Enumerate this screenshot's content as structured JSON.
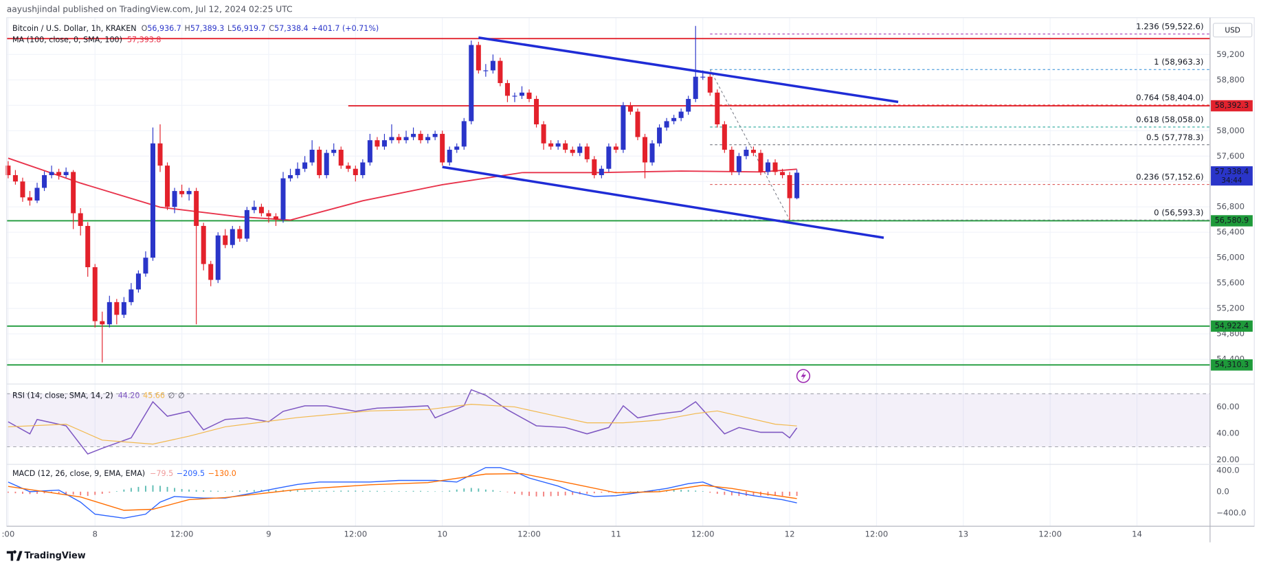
{
  "header": "aayushjindal published on TradingView.com, Jul 12, 2024 02:25 UTC",
  "footer": "TradingView",
  "chart_data": {
    "type": "candlestick",
    "title": "Bitcoin / U.S. Dollar, 1h, KRAKEN",
    "ohlc_labels": [
      "O",
      "H",
      "L",
      "C"
    ],
    "ohlc_values": [
      "56,936.7",
      "57,389.3",
      "56,919.7",
      "57,338.4"
    ],
    "change": "+401.7 (+0.71%)",
    "ma_title": "MA (100, close, 0, SMA, 100)",
    "ma_value": "57,393.8",
    "currency": "USD",
    "colors": {
      "up": "#2a35c9",
      "down": "#e3212b",
      "ma": "#e8334b",
      "trend": "#1f2cd6"
    },
    "xlim": [
      -0.2,
      166.1
    ],
    "xticks": [
      {
        "value": 0,
        "label": ":00"
      },
      {
        "value": 12,
        "label": "8"
      },
      {
        "value": 24,
        "label": "12:00"
      },
      {
        "value": 36,
        "label": "9"
      },
      {
        "value": 48,
        "label": "12:00"
      },
      {
        "value": 60,
        "label": "10"
      },
      {
        "value": 72,
        "label": "12:00"
      },
      {
        "value": 84,
        "label": "11"
      },
      {
        "value": 96,
        "label": "12:00"
      },
      {
        "value": 108,
        "label": "12"
      },
      {
        "value": 120,
        "label": "12:00"
      },
      {
        "value": 132,
        "label": "13"
      },
      {
        "value": 144,
        "label": "12:00"
      },
      {
        "value": 156,
        "label": "14"
      }
    ],
    "ylim": [
      54010,
      59780
    ],
    "yticks": [
      {
        "value": 54400,
        "label": "54,400"
      },
      {
        "value": 54800,
        "label": "54,800"
      },
      {
        "value": 55200,
        "label": "55,200"
      },
      {
        "value": 55600,
        "label": "55,600"
      },
      {
        "value": 56000,
        "label": "56,000"
      },
      {
        "value": 56400,
        "label": "56,400"
      },
      {
        "value": 56800,
        "label": "56,800"
      },
      {
        "value": 57200,
        "label": "57,200"
      },
      {
        "value": 57600,
        "label": "57,600"
      },
      {
        "value": 58000,
        "label": "58,000"
      },
      {
        "value": 58400,
        "label": "58,400"
      },
      {
        "value": 58800,
        "label": "58,800"
      },
      {
        "value": 59200,
        "label": "59,200"
      }
    ],
    "grid": true,
    "candles": [
      [
        57450,
        57520,
        57250,
        57300
      ],
      [
        57300,
        57380,
        57150,
        57200
      ],
      [
        57200,
        57260,
        56880,
        56950
      ],
      [
        56950,
        57050,
        56820,
        56900
      ],
      [
        56900,
        57180,
        56860,
        57100
      ],
      [
        57100,
        57360,
        57050,
        57300
      ],
      [
        57300,
        57450,
        57250,
        57350
      ],
      [
        57350,
        57400,
        57230,
        57300
      ],
      [
        57300,
        57420,
        57260,
        57350
      ],
      [
        57350,
        57380,
        56450,
        56700
      ],
      [
        56700,
        56780,
        56350,
        56500
      ],
      [
        56500,
        56560,
        55700,
        55850
      ],
      [
        55850,
        55900,
        54900,
        55000
      ],
      [
        55000,
        55150,
        54350,
        54950
      ],
      [
        54950,
        55400,
        54900,
        55300
      ],
      [
        55300,
        55350,
        54950,
        55100
      ],
      [
        55100,
        55380,
        55050,
        55300
      ],
      [
        55300,
        55600,
        55250,
        55500
      ],
      [
        55500,
        55800,
        55450,
        55750
      ],
      [
        55750,
        56100,
        55700,
        56000
      ],
      [
        56000,
        58050,
        55950,
        57800
      ],
      [
        57800,
        58100,
        57350,
        57450
      ],
      [
        57450,
        57500,
        56750,
        56800
      ],
      [
        56800,
        57100,
        56700,
        57050
      ],
      [
        57050,
        57150,
        56950,
        57000
      ],
      [
        57000,
        57100,
        56900,
        57050
      ],
      [
        57050,
        57100,
        54950,
        56500
      ],
      [
        56500,
        56550,
        55800,
        55900
      ],
      [
        55900,
        55950,
        55550,
        55650
      ],
      [
        55650,
        56400,
        55600,
        56350
      ],
      [
        56350,
        56450,
        56150,
        56200
      ],
      [
        56200,
        56500,
        56150,
        56450
      ],
      [
        56450,
        56500,
        56250,
        56300
      ],
      [
        56300,
        56800,
        56250,
        56750
      ],
      [
        56750,
        56900,
        56700,
        56800
      ],
      [
        56800,
        56850,
        56650,
        56700
      ],
      [
        56700,
        56750,
        56550,
        56650
      ],
      [
        56650,
        56700,
        56500,
        56600
      ],
      [
        56600,
        57350,
        56550,
        57250
      ],
      [
        57250,
        57400,
        57200,
        57300
      ],
      [
        57300,
        57500,
        57250,
        57400
      ],
      [
        57400,
        57600,
        57350,
        57500
      ],
      [
        57500,
        57850,
        57450,
        57700
      ],
      [
        57700,
        57750,
        57250,
        57300
      ],
      [
        57300,
        57700,
        57250,
        57650
      ],
      [
        57650,
        57800,
        57600,
        57700
      ],
      [
        57700,
        57750,
        57400,
        57450
      ],
      [
        57450,
        57500,
        57350,
        57400
      ],
      [
        57400,
        57450,
        57200,
        57300
      ],
      [
        57300,
        57550,
        57250,
        57500
      ],
      [
        57500,
        57950,
        57450,
        57850
      ],
      [
        57850,
        57900,
        57700,
        57750
      ],
      [
        57750,
        57950,
        57700,
        57850
      ],
      [
        57850,
        58100,
        57800,
        57900
      ],
      [
        57900,
        57950,
        57800,
        57850
      ],
      [
        57850,
        58000,
        57800,
        57900
      ],
      [
        57900,
        58050,
        57850,
        57950
      ],
      [
        57950,
        58000,
        57800,
        57850
      ],
      [
        57850,
        57950,
        57800,
        57900
      ],
      [
        57900,
        58000,
        57850,
        57950
      ],
      [
        57950,
        58000,
        57450,
        57500
      ],
      [
        57500,
        57750,
        57450,
        57700
      ],
      [
        57700,
        57800,
        57650,
        57750
      ],
      [
        57750,
        58200,
        57700,
        58150
      ],
      [
        58150,
        59420,
        58100,
        59350
      ],
      [
        59350,
        59400,
        58900,
        58950
      ],
      [
        58950,
        59050,
        58850,
        58950
      ],
      [
        58950,
        59200,
        58900,
        59100
      ],
      [
        59100,
        59150,
        58700,
        58750
      ],
      [
        58750,
        58800,
        58450,
        58550
      ],
      [
        58550,
        58600,
        58450,
        58550
      ],
      [
        58550,
        58700,
        58500,
        58600
      ],
      [
        58600,
        58650,
        58450,
        58500
      ],
      [
        58500,
        58550,
        58050,
        58100
      ],
      [
        58100,
        58150,
        57700,
        57800
      ],
      [
        57800,
        57850,
        57700,
        57750
      ],
      [
        57750,
        57850,
        57700,
        57800
      ],
      [
        57800,
        57850,
        57650,
        57700
      ],
      [
        57700,
        57750,
        57600,
        57650
      ],
      [
        57650,
        57800,
        57600,
        57750
      ],
      [
        57750,
        57800,
        57500,
        57550
      ],
      [
        57550,
        57600,
        57250,
        57300
      ],
      [
        57300,
        57450,
        57250,
        57400
      ],
      [
        57400,
        57800,
        57350,
        57750
      ],
      [
        57750,
        57800,
        57650,
        57700
      ],
      [
        57700,
        58450,
        57650,
        58400
      ],
      [
        58400,
        58450,
        58250,
        58300
      ],
      [
        58300,
        58350,
        57850,
        57900
      ],
      [
        57900,
        57950,
        57250,
        57500
      ],
      [
        57500,
        57850,
        57450,
        57800
      ],
      [
        57800,
        58100,
        57750,
        58050
      ],
      [
        58050,
        58200,
        58000,
        58150
      ],
      [
        58150,
        58250,
        58100,
        58200
      ],
      [
        58200,
        58350,
        58150,
        58300
      ],
      [
        58300,
        58550,
        58250,
        58500
      ],
      [
        58500,
        59650,
        58450,
        58850
      ],
      [
        58850,
        58950,
        58800,
        58850
      ],
      [
        58850,
        58900,
        58550,
        58600
      ],
      [
        58600,
        58650,
        58050,
        58100
      ],
      [
        58100,
        58150,
        57650,
        57700
      ],
      [
        57700,
        57750,
        57300,
        57350
      ],
      [
        57350,
        57650,
        57300,
        57600
      ],
      [
        57600,
        57750,
        57550,
        57700
      ],
      [
        57700,
        57750,
        57600,
        57650
      ],
      [
        57650,
        57700,
        57300,
        57350
      ],
      [
        57350,
        57550,
        57300,
        57500
      ],
      [
        57500,
        57550,
        57300,
        57350
      ],
      [
        57350,
        57400,
        57250,
        57300
      ],
      [
        57300,
        57350,
        56593.3,
        56936.7
      ],
      [
        56936.7,
        57389.3,
        56919.7,
        57338.4
      ]
    ],
    "ma": {
      "x": [
        0,
        10,
        21,
        32,
        39,
        49,
        60,
        71,
        82,
        93,
        104,
        109
      ],
      "values": [
        57567,
        57175,
        56795,
        56643,
        56592,
        56896,
        57149,
        57339,
        57340,
        57364,
        57350,
        57393.8
      ]
    },
    "levels": [
      {
        "value": 59450,
        "color": "#e2232e"
      },
      {
        "value": 58392.3,
        "label": "58,392.3",
        "color": "#e2232e",
        "start": 47
      },
      {
        "value": 56580.9,
        "label": "56,580.9",
        "color": "#1e9a3a"
      },
      {
        "value": 54922.4,
        "label": "54,922.4",
        "color": "#1e9a3a"
      },
      {
        "value": 54310.3,
        "label": "54,310.3",
        "color": "#1e9a3a"
      }
    ],
    "trendlines": [
      {
        "x": [
          65,
          123
        ],
        "values": [
          59466,
          58453
        ]
      },
      {
        "x": [
          60,
          121
        ],
        "values": [
          57428,
          56314
        ]
      }
    ],
    "fib": {
      "x": [
        97,
        108
      ],
      "levels": [
        {
          "value": 59522.6,
          "label": "1.236 (59,522.6)",
          "color": "#9c27b0"
        },
        {
          "value": 58963.3,
          "label": "1 (58,963.3)",
          "color": "#2a8ad6"
        },
        {
          "value": 58404.0,
          "label": "0.764 (58,404.0)",
          "color": "#e53935"
        },
        {
          "value": 58058.0,
          "label": "0.618 (58,058.0)",
          "color": "#26a69a"
        },
        {
          "value": 57778.3,
          "label": "0.5 (57,778.3)",
          "color": "#5d606b"
        },
        {
          "value": 57152.6,
          "label": "0.236 (57,152.6)",
          "color": "#d84343"
        },
        {
          "value": 56593.3,
          "label": "0 (56,593.3)",
          "color": "#8a8d96"
        }
      ]
    },
    "current": {
      "value": 57338.4,
      "label": "57,338.4",
      "countdown": "34:44"
    },
    "rsi": {
      "title": "RSI (14, close, SMA, 14, 2)",
      "value_label": "44.20",
      "sma_label": "45.66",
      "extra": [
        "∅",
        "∅"
      ],
      "ylim": [
        16.7,
        77.3
      ],
      "yticks": [
        {
          "value": 60,
          "label": "60.00"
        },
        {
          "value": 40,
          "label": "40.00"
        },
        {
          "value": 20,
          "label": "20.00"
        }
      ],
      "band": [
        30,
        70
      ],
      "color": "#7e57c2",
      "sma_color": "#f2b84b",
      "x": [
        0,
        3,
        4,
        8,
        11,
        13,
        17,
        20,
        22,
        25,
        27,
        30,
        33,
        36,
        38,
        41,
        44,
        48,
        51,
        54,
        58,
        59,
        63,
        64,
        66,
        69,
        73,
        77,
        80,
        83,
        85,
        87,
        90,
        93,
        95,
        97,
        99,
        101,
        104,
        107,
        108,
        109
      ],
      "values": [
        48.8,
        39.7,
        50.6,
        45.8,
        24.5,
        28.8,
        36.7,
        63.9,
        53.0,
        56.7,
        42.7,
        50.6,
        51.8,
        48.8,
        56.7,
        60.9,
        60.9,
        56.7,
        59.1,
        59.7,
        60.9,
        51.8,
        60.9,
        73.0,
        68.8,
        57.9,
        45.8,
        44.5,
        39.7,
        44.5,
        60.9,
        51.8,
        54.8,
        56.7,
        63.9,
        51.8,
        39.7,
        44.5,
        40.9,
        40.9,
        36.7,
        44.2
      ],
      "sma": {
        "x": [
          0,
          8,
          13,
          20,
          25,
          30,
          40,
          50,
          58,
          64,
          70,
          75,
          80,
          85,
          90,
          95,
          98,
          102,
          106,
          109
        ],
        "values": [
          45,
          47,
          35,
          32,
          38,
          45,
          52,
          57,
          58,
          62,
          60,
          54,
          48,
          48,
          50,
          55,
          57,
          52,
          47,
          45.66
        ]
      }
    },
    "macd": {
      "title": "MACD (12, 26, close, 9, EMA, EMA)",
      "labels": [
        "−79.5",
        "−209.5",
        "−130.0"
      ],
      "ylim": [
        -649,
        513
      ],
      "yticks": [
        {
          "value": 400,
          "label": "400.0"
        },
        {
          "value": 0,
          "label": "0.0"
        },
        {
          "value": -400,
          "label": "−400.0"
        }
      ],
      "macd": {
        "color": "#2962ff",
        "x": [
          0,
          3,
          7,
          10,
          12,
          16,
          19,
          21,
          23,
          27,
          30,
          33,
          37,
          40,
          43,
          47,
          50,
          54,
          59,
          62,
          66,
          68,
          70,
          72,
          76,
          78,
          81,
          84,
          88,
          91,
          94,
          96,
          98,
          100,
          103,
          107,
          109
        ],
        "values": [
          181,
          0,
          30,
          -196,
          -423,
          -498,
          -423,
          -196,
          -91,
          -121,
          -121,
          -45,
          60,
          136,
          181,
          181,
          181,
          211,
          211,
          181,
          453,
          453,
          377,
          256,
          106,
          0,
          -91,
          -75,
          0,
          60,
          151,
          181,
          75,
          0,
          -75,
          -151,
          -209.5
        ]
      },
      "signal": {
        "color": "#ff6d00",
        "x": [
          0,
          10,
          16,
          20,
          25,
          30,
          40,
          50,
          58,
          66,
          71,
          78,
          84,
          90,
          96,
          100,
          104,
          109
        ],
        "values": [
          100,
          -100,
          -350,
          -330,
          -150,
          -110,
          40,
          130,
          170,
          330,
          340,
          150,
          -20,
          0,
          120,
          60,
          -30,
          -130
        ]
      },
      "hist_colors": {
        "up": "#26a69a",
        "down": "#ef5350"
      },
      "histogram": [
        -20,
        -30,
        -40,
        -45,
        -40,
        -30,
        -25,
        -30,
        -40,
        -55,
        -70,
        -80,
        -60,
        -40,
        -20,
        10,
        40,
        70,
        90,
        110,
        120,
        110,
        90,
        70,
        50,
        40,
        30,
        25,
        20,
        15,
        10,
        15,
        20,
        25,
        30,
        35,
        35,
        30,
        30,
        25,
        25,
        20,
        20,
        15,
        15,
        15,
        20,
        20,
        20,
        15,
        15,
        15,
        10,
        10,
        10,
        10,
        15,
        15,
        10,
        5,
        5,
        20,
        40,
        60,
        70,
        60,
        40,
        30,
        10,
        -10,
        -40,
        -60,
        -80,
        -90,
        -90,
        -85,
        -80,
        -70,
        -60,
        -50,
        -40,
        -30,
        -20,
        -15,
        -10,
        -5,
        5,
        10,
        15,
        20,
        20,
        25,
        30,
        35,
        30,
        20,
        10,
        -20,
        -40,
        -60,
        -70,
        -80,
        -80,
        -80,
        -75,
        -75,
        -80,
        -80,
        -80,
        -79.5
      ]
    }
  }
}
